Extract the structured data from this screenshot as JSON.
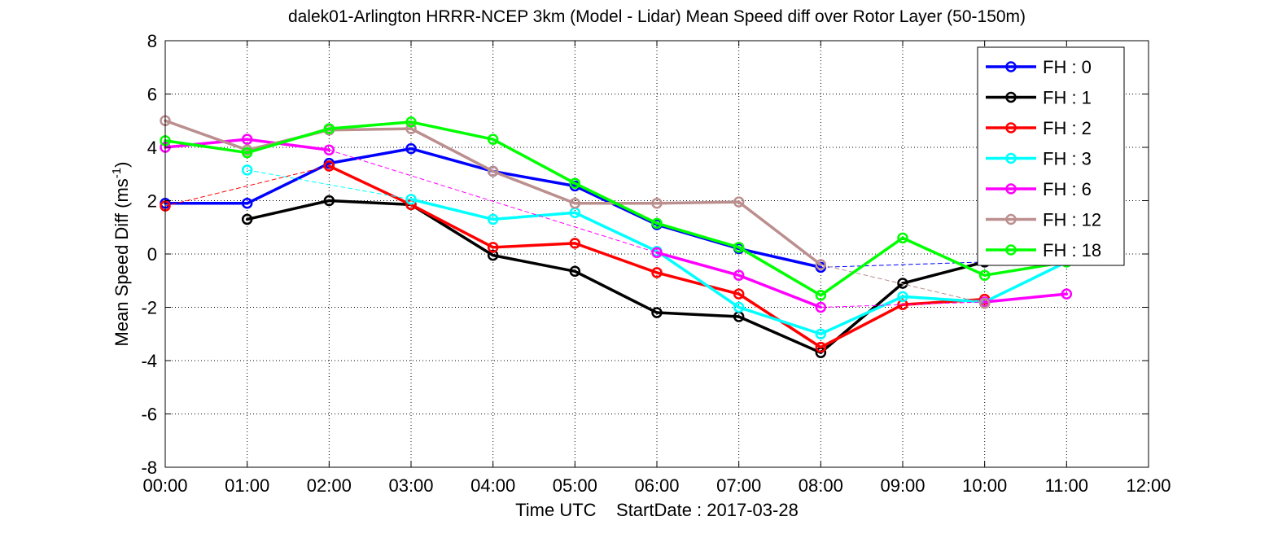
{
  "chart_data": {
    "type": "line",
    "title": "dalek01-Arlington HRRR-NCEP 3km (Model - Lidar) Mean Speed diff over Rotor Layer (50-150m)",
    "xlabel": "Time UTC    StartDate : 2017-03-28",
    "ylabel_main": "Mean Speed Diff (ms",
    "ylabel_sup": "-1",
    "ylabel_close": ")",
    "xlim": [
      0,
      12
    ],
    "ylim": [
      -8,
      8
    ],
    "xticks": [
      0,
      1,
      2,
      3,
      4,
      5,
      6,
      7,
      8,
      9,
      10,
      11,
      12
    ],
    "xtick_labels": [
      "00:00",
      "01:00",
      "02:00",
      "03:00",
      "04:00",
      "05:00",
      "06:00",
      "07:00",
      "08:00",
      "09:00",
      "10:00",
      "11:00",
      "12:00"
    ],
    "yticks": [
      -8,
      -6,
      -4,
      -2,
      0,
      2,
      4,
      6,
      8
    ],
    "ytick_labels": [
      "-8",
      "-6",
      "-4",
      "-2",
      "0",
      "2",
      "4",
      "6",
      "8"
    ],
    "grid": true,
    "legend_position": "top-right",
    "series": [
      {
        "name": "FH : 0",
        "color": "#0000ff",
        "points": [
          [
            0,
            1.9
          ],
          [
            1,
            1.9
          ],
          [
            2,
            3.4
          ],
          [
            3,
            3.95
          ],
          [
            4,
            3.1
          ],
          [
            5,
            2.55
          ],
          [
            6,
            1.1
          ],
          [
            7,
            0.2
          ],
          [
            8,
            -0.5
          ],
          [
            10,
            -0.3
          ]
        ]
      },
      {
        "name": "FH : 1",
        "color": "#000000",
        "points": [
          [
            1,
            1.3
          ],
          [
            2,
            2.0
          ],
          [
            3,
            1.85
          ],
          [
            4,
            -0.05
          ],
          [
            5,
            -0.65
          ],
          [
            6,
            -2.2
          ],
          [
            7,
            -2.35
          ],
          [
            8,
            -3.7
          ],
          [
            9,
            -1.1
          ],
          [
            10,
            -0.3
          ]
        ]
      },
      {
        "name": "FH : 2",
        "color": "#ff0000",
        "points": [
          [
            0,
            1.8
          ],
          [
            2,
            3.3
          ],
          [
            3,
            1.85
          ],
          [
            4,
            0.25
          ],
          [
            5,
            0.4
          ],
          [
            6,
            -0.7
          ],
          [
            7,
            -1.5
          ],
          [
            8,
            -3.5
          ],
          [
            9,
            -1.9
          ],
          [
            10,
            -1.7
          ]
        ]
      },
      {
        "name": "FH : 3",
        "color": "#00ffff",
        "points": [
          [
            1,
            3.15
          ],
          [
            3,
            2.05
          ],
          [
            4,
            1.3
          ],
          [
            5,
            1.55
          ],
          [
            6,
            0.1
          ],
          [
            7,
            -2.0
          ],
          [
            8,
            -3.0
          ],
          [
            9,
            -1.6
          ],
          [
            10,
            -1.8
          ],
          [
            11,
            -0.3
          ]
        ]
      },
      {
        "name": "FH : 6",
        "color": "#ff00ff",
        "points": [
          [
            0,
            4.0
          ],
          [
            1,
            4.3
          ],
          [
            2,
            3.9
          ],
          [
            6,
            0.05
          ],
          [
            7,
            -0.8
          ],
          [
            8,
            -2.0
          ],
          [
            10,
            -1.8
          ],
          [
            11,
            -1.5
          ]
        ]
      },
      {
        "name": "FH : 12",
        "color": "#bc8f8f",
        "points": [
          [
            0,
            5.0
          ],
          [
            1,
            3.9
          ],
          [
            2,
            4.65
          ],
          [
            3,
            4.7
          ],
          [
            4,
            3.1
          ],
          [
            5,
            1.9
          ],
          [
            6,
            1.9
          ],
          [
            7,
            1.95
          ],
          [
            8,
            -0.4
          ],
          [
            10,
            -1.85
          ]
        ]
      },
      {
        "name": "FH : 18",
        "color": "#00ff00",
        "points": [
          [
            0,
            4.25
          ],
          [
            1,
            3.8
          ],
          [
            2,
            4.7
          ],
          [
            3,
            4.95
          ],
          [
            4,
            4.3
          ],
          [
            5,
            2.65
          ],
          [
            6,
            1.15
          ],
          [
            7,
            0.25
          ],
          [
            8,
            -1.55
          ],
          [
            9,
            0.6
          ],
          [
            10,
            -0.8
          ],
          [
            11,
            -0.3
          ]
        ]
      }
    ]
  }
}
